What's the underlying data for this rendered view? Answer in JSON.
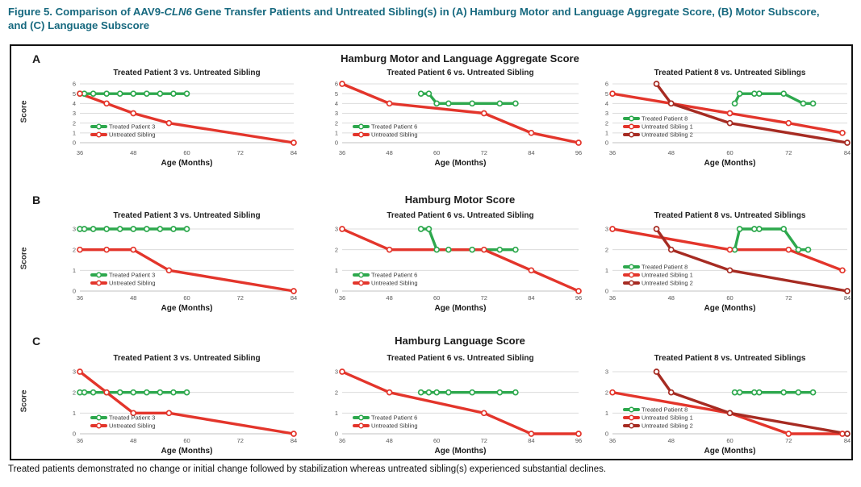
{
  "header": {
    "title_prefix": "Figure 5. Comparison of AAV9-",
    "title_italic": "CLN6",
    "title_suffix": " Gene Transfer Patients and Untreated Sibling(s) in (A) Hamburg Motor and Language Aggregate Score, (B) Motor Subscore, and (C) Language Subscore"
  },
  "caption": "Treated patients demonstrated no change or initial change followed by stabilization whereas untreated sibling(s) experienced substantial declines.",
  "colors": {
    "accent_teal": "#17697F",
    "treated_green": "#2DA84D",
    "untreated_red": "#E3352B",
    "untreated_dark_red": "#A62B22",
    "grid": "#DCDCDC",
    "axis_line": "#C2C2C2",
    "tick_text": "#595959"
  },
  "chart_data": {
    "type": "line",
    "xlabel": "Age (Months)",
    "ylabel": "Score",
    "legend_position": "inside-lower-left",
    "grid": true,
    "rows": [
      {
        "label": "A",
        "title": "Hamburg Motor and Language Aggregate Score",
        "ylim": [
          0,
          6
        ],
        "yticks": [
          0,
          1,
          2,
          3,
          4,
          5,
          6
        ],
        "panels": [
          {
            "title": "Treated Patient 3 vs. Untreated Sibling",
            "xlim": [
              36,
              84
            ],
            "xticks": [
              36,
              48,
              60,
              72,
              84
            ],
            "series": [
              {
                "name": "Treated Patient 3",
                "color": "treated_green",
                "x": [
                  36,
                  37,
                  39,
                  42,
                  45,
                  48,
                  51,
                  54,
                  57,
                  60
                ],
                "y": [
                  5,
                  5,
                  5,
                  5,
                  5,
                  5,
                  5,
                  5,
                  5,
                  5
                ]
              },
              {
                "name": "Untreated Sibling",
                "color": "untreated_red",
                "x": [
                  36,
                  42,
                  48,
                  56,
                  84
                ],
                "y": [
                  5,
                  4,
                  3,
                  2,
                  0
                ]
              }
            ]
          },
          {
            "title": "Treated Patient 6 vs. Untreated Sibling",
            "xlim": [
              36,
              96
            ],
            "xticks": [
              36,
              48,
              60,
              72,
              84,
              96
            ],
            "series": [
              {
                "name": "Treated Patient 6",
                "color": "treated_green",
                "x": [
                  56,
                  58,
                  60,
                  63,
                  69,
                  76,
                  80
                ],
                "y": [
                  5,
                  5,
                  4,
                  4,
                  4,
                  4,
                  4
                ]
              },
              {
                "name": "Untreated Sibling",
                "color": "untreated_red",
                "x": [
                  36,
                  48,
                  72,
                  84,
                  96
                ],
                "y": [
                  6,
                  4,
                  3,
                  1,
                  0
                ]
              }
            ]
          },
          {
            "title": "Treated Patient 8 vs. Untreated Siblings",
            "xlim": [
              36,
              84
            ],
            "xticks": [
              36,
              48,
              60,
              72,
              84
            ],
            "series": [
              {
                "name": "Treated Patient 8",
                "color": "treated_green",
                "x": [
                  61,
                  62,
                  65,
                  66,
                  71,
                  75,
                  77
                ],
                "y": [
                  4,
                  5,
                  5,
                  5,
                  5,
                  4,
                  4
                ]
              },
              {
                "name": "Untreated Sibling 1",
                "color": "untreated_red",
                "x": [
                  36,
                  48,
                  60,
                  72,
                  83
                ],
                "y": [
                  5,
                  4,
                  3,
                  2,
                  1
                ]
              },
              {
                "name": "Untreated Sibling 2",
                "color": "untreated_dark_red",
                "x": [
                  45,
                  48,
                  60,
                  84
                ],
                "y": [
                  6,
                  4,
                  2,
                  0
                ]
              }
            ]
          }
        ]
      },
      {
        "label": "B",
        "title": "Hamburg Motor Score",
        "ylim": [
          0,
          3
        ],
        "yticks": [
          0,
          1,
          2,
          3
        ],
        "panels": [
          {
            "title": "Treated Patient 3 vs. Untreated Sibling",
            "xlim": [
              36,
              84
            ],
            "xticks": [
              36,
              48,
              60,
              72,
              84
            ],
            "series": [
              {
                "name": "Treated Patient 3",
                "color": "treated_green",
                "x": [
                  36,
                  37,
                  39,
                  42,
                  45,
                  48,
                  51,
                  54,
                  57,
                  60
                ],
                "y": [
                  3,
                  3,
                  3,
                  3,
                  3,
                  3,
                  3,
                  3,
                  3,
                  3
                ]
              },
              {
                "name": "Untreated Sibling",
                "color": "untreated_red",
                "x": [
                  36,
                  42,
                  48,
                  56,
                  84
                ],
                "y": [
                  2,
                  2,
                  2,
                  1,
                  0
                ]
              }
            ]
          },
          {
            "title": "Treated Patient 6 vs. Untreated Sibling",
            "xlim": [
              36,
              96
            ],
            "xticks": [
              36,
              48,
              60,
              72,
              84,
              96
            ],
            "series": [
              {
                "name": "Treated Patient 6",
                "color": "treated_green",
                "x": [
                  56,
                  58,
                  60,
                  63,
                  69,
                  76,
                  80
                ],
                "y": [
                  3,
                  3,
                  2,
                  2,
                  2,
                  2,
                  2
                ]
              },
              {
                "name": "Untreated Sibling",
                "color": "untreated_red",
                "x": [
                  36,
                  48,
                  72,
                  84,
                  96
                ],
                "y": [
                  3,
                  2,
                  2,
                  1,
                  0
                ]
              }
            ]
          },
          {
            "title": "Treated Patient 8 vs. Untreated Siblings",
            "xlim": [
              36,
              84
            ],
            "xticks": [
              36,
              48,
              60,
              72,
              84
            ],
            "series": [
              {
                "name": "Treated Patient 8",
                "color": "treated_green",
                "x": [
                  61,
                  62,
                  65,
                  66,
                  71,
                  74,
                  76
                ],
                "y": [
                  2,
                  3,
                  3,
                  3,
                  3,
                  2,
                  2
                ]
              },
              {
                "name": "Untreated Sibling 1",
                "color": "untreated_red",
                "x": [
                  36,
                  60,
                  72,
                  83
                ],
                "y": [
                  3,
                  2,
                  2,
                  1
                ]
              },
              {
                "name": "Untreated Sibling 2",
                "color": "untreated_dark_red",
                "x": [
                  45,
                  48,
                  60,
                  84
                ],
                "y": [
                  3,
                  2,
                  1,
                  0
                ]
              }
            ]
          }
        ]
      },
      {
        "label": "C",
        "title": "Hamburg Language Score",
        "ylim": [
          0,
          3
        ],
        "yticks": [
          0,
          1,
          2,
          3
        ],
        "panels": [
          {
            "title": "Treated Patient 3 vs. Untreated Sibling",
            "xlim": [
              36,
              84
            ],
            "xticks": [
              36,
              48,
              60,
              72,
              84
            ],
            "series": [
              {
                "name": "Treated Patient 3",
                "color": "treated_green",
                "x": [
                  36,
                  37,
                  39,
                  42,
                  45,
                  48,
                  51,
                  54,
                  57,
                  60
                ],
                "y": [
                  2,
                  2,
                  2,
                  2,
                  2,
                  2,
                  2,
                  2,
                  2,
                  2
                ]
              },
              {
                "name": "Untreated Sibling",
                "color": "untreated_red",
                "x": [
                  36,
                  42,
                  48,
                  56,
                  84
                ],
                "y": [
                  3,
                  2,
                  1,
                  1,
                  0
                ]
              }
            ]
          },
          {
            "title": "Treated Patient 6 vs. Untreated Sibling",
            "xlim": [
              36,
              96
            ],
            "xticks": [
              36,
              48,
              60,
              72,
              84,
              96
            ],
            "series": [
              {
                "name": "Treated Patient 6",
                "color": "treated_green",
                "x": [
                  56,
                  58,
                  60,
                  63,
                  69,
                  76,
                  80
                ],
                "y": [
                  2,
                  2,
                  2,
                  2,
                  2,
                  2,
                  2
                ]
              },
              {
                "name": "Untreated Sibling",
                "color": "untreated_red",
                "x": [
                  36,
                  48,
                  72,
                  84,
                  96
                ],
                "y": [
                  3,
                  2,
                  1,
                  0,
                  0
                ]
              }
            ]
          },
          {
            "title": "Treated Patient 8 vs. Untreated Siblings",
            "xlim": [
              36,
              84
            ],
            "xticks": [
              36,
              48,
              60,
              72,
              84
            ],
            "series": [
              {
                "name": "Treated Patient 8",
                "color": "treated_green",
                "x": [
                  61,
                  62,
                  65,
                  66,
                  71,
                  74,
                  77
                ],
                "y": [
                  2,
                  2,
                  2,
                  2,
                  2,
                  2,
                  2
                ]
              },
              {
                "name": "Untreated Sibling 1",
                "color": "untreated_red",
                "x": [
                  36,
                  60,
                  72,
                  83
                ],
                "y": [
                  2,
                  1,
                  0,
                  0
                ]
              },
              {
                "name": "Untreated Sibling 2",
                "color": "untreated_dark_red",
                "x": [
                  45,
                  48,
                  60,
                  84
                ],
                "y": [
                  3,
                  2,
                  1,
                  0
                ]
              }
            ]
          }
        ]
      }
    ]
  }
}
